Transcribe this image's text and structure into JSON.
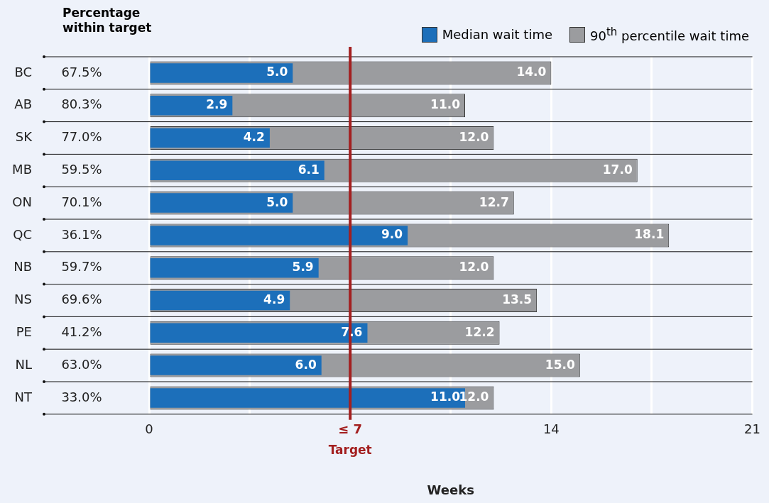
{
  "chart_data": {
    "type": "bar",
    "orientation": "horizontal",
    "ylabel": "Percentage within target",
    "xlabel": "Weeks",
    "categories": [
      "BC",
      "AB",
      "SK",
      "MB",
      "ON",
      "QC",
      "NB",
      "NS",
      "PE",
      "NL",
      "NT"
    ],
    "series": [
      {
        "name": "Median wait time",
        "color": "#1c6fba",
        "values": [
          5.0,
          2.9,
          4.2,
          6.1,
          5.0,
          9.0,
          5.9,
          4.9,
          7.6,
          6.0,
          11.0
        ],
        "value_labels": [
          "5.0",
          "2.9",
          "4.2",
          "6.1",
          "5.0",
          "9.0",
          "5.9",
          "4.9",
          "7.6",
          "6.0",
          "11.0"
        ]
      },
      {
        "name": "90$^{th}$ percentile wait time",
        "color": "#9b9c9f",
        "values": [
          14.0,
          11.0,
          12.0,
          17.0,
          12.7,
          18.1,
          12.0,
          13.5,
          12.2,
          15.0,
          12.0
        ],
        "value_labels": [
          "14.0",
          "11.0",
          "12.0",
          "17.0",
          "12.7",
          "18.1",
          "12.0",
          "13.5",
          "12.2",
          "15.0",
          "12.0"
        ]
      }
    ],
    "annotations": [
      "67.5%",
      "80.3%",
      "77.0%",
      "59.5%",
      "70.1%",
      "36.1%",
      "59.7%",
      "69.6%",
      "41.2%",
      "63.0%",
      "33.0%"
    ],
    "xlim": [
      0,
      21
    ],
    "xticks": [
      0,
      {
        "value": 3.5,
        "label": null
      },
      {
        "value": 7,
        "label": "≤ 7"
      },
      {
        "value": 10.5,
        "label": null
      },
      14,
      {
        "value": 17.5,
        "label": null
      },
      21
    ],
    "ref_lines": [
      {
        "axis": "x",
        "value": 7,
        "label": "Target",
        "color": "#a31f1f"
      }
    ],
    "grid": "x",
    "legend": "top right"
  }
}
